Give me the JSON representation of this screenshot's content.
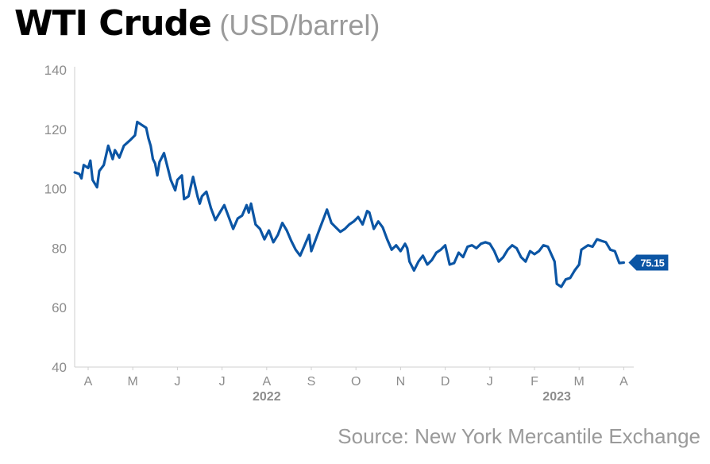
{
  "title": "WTI Crude",
  "subtitle": "(USD/barrel)",
  "source": "Source: New York Mercantile Exchange",
  "colors": {
    "line": "#0b55a4",
    "axis": "#cfcfcf",
    "tick_text": "#8c8c8c"
  },
  "chart_data": {
    "type": "line",
    "title": "WTI Crude",
    "subtitle": "(USD/barrel)",
    "xlabel": "",
    "ylabel": "",
    "ylim": [
      40,
      140
    ],
    "yticks": [
      40,
      60,
      80,
      100,
      120,
      140
    ],
    "grid": false,
    "x_tick_labels": [
      "A",
      "M",
      "J",
      "J",
      "A",
      "S",
      "O",
      "N",
      "D",
      "J",
      "F",
      "M",
      "A"
    ],
    "year_labels": [
      {
        "label": "2022",
        "month_index": 4
      },
      {
        "label": "2023",
        "month_index": 10.5
      }
    ],
    "last_value_label": "75.15",
    "series": [
      {
        "values": [
          [
            -0.3,
            105.5
          ],
          [
            -0.2,
            105
          ],
          [
            -0.15,
            103.5
          ],
          [
            -0.1,
            108
          ],
          [
            0,
            107
          ],
          [
            0.05,
            109.5
          ],
          [
            0.1,
            103
          ],
          [
            0.2,
            100.5
          ],
          [
            0.25,
            106
          ],
          [
            0.35,
            108
          ],
          [
            0.45,
            114.5
          ],
          [
            0.55,
            110
          ],
          [
            0.6,
            113
          ],
          [
            0.7,
            110.5
          ],
          [
            0.8,
            114.5
          ],
          [
            0.95,
            116.5
          ],
          [
            1.05,
            118
          ],
          [
            1.1,
            122.5
          ],
          [
            1.2,
            121.5
          ],
          [
            1.3,
            120.5
          ],
          [
            1.35,
            117
          ],
          [
            1.4,
            114.5
          ],
          [
            1.45,
            110
          ],
          [
            1.5,
            108.5
          ],
          [
            1.55,
            104.5
          ],
          [
            1.6,
            109
          ],
          [
            1.7,
            112
          ],
          [
            1.8,
            106
          ],
          [
            1.85,
            103
          ],
          [
            1.95,
            99.5
          ],
          [
            2.0,
            103
          ],
          [
            2.1,
            104.5
          ],
          [
            2.15,
            96.5
          ],
          [
            2.25,
            97.5
          ],
          [
            2.35,
            104
          ],
          [
            2.45,
            97.5
          ],
          [
            2.5,
            95
          ],
          [
            2.55,
            97.5
          ],
          [
            2.65,
            99
          ],
          [
            2.75,
            93.5
          ],
          [
            2.85,
            89.5
          ],
          [
            2.95,
            92
          ],
          [
            3.05,
            94.5
          ],
          [
            3.15,
            90.5
          ],
          [
            3.25,
            86.5
          ],
          [
            3.35,
            90
          ],
          [
            3.45,
            91
          ],
          [
            3.55,
            94.5
          ],
          [
            3.6,
            92
          ],
          [
            3.65,
            95
          ],
          [
            3.75,
            88
          ],
          [
            3.85,
            86.5
          ],
          [
            3.95,
            83
          ],
          [
            4.05,
            86
          ],
          [
            4.15,
            82
          ],
          [
            4.25,
            84.5
          ],
          [
            4.35,
            88.5
          ],
          [
            4.45,
            86
          ],
          [
            4.55,
            82.5
          ],
          [
            4.65,
            79.5
          ],
          [
            4.75,
            77.5
          ],
          [
            4.85,
            81
          ],
          [
            4.95,
            84.5
          ],
          [
            5.0,
            79
          ],
          [
            5.1,
            83
          ],
          [
            5.2,
            87
          ],
          [
            5.3,
            91
          ],
          [
            5.35,
            93
          ],
          [
            5.45,
            88.5
          ],
          [
            5.55,
            87
          ],
          [
            5.65,
            85.5
          ],
          [
            5.75,
            86.5
          ],
          [
            5.85,
            88
          ],
          [
            5.95,
            89
          ],
          [
            6.05,
            90.5
          ],
          [
            6.15,
            88
          ],
          [
            6.25,
            92.5
          ],
          [
            6.3,
            92
          ],
          [
            6.4,
            86.5
          ],
          [
            6.5,
            89
          ],
          [
            6.6,
            87
          ],
          [
            6.7,
            83
          ],
          [
            6.8,
            79.5
          ],
          [
            6.9,
            81
          ],
          [
            7.0,
            79
          ],
          [
            7.1,
            81.5
          ],
          [
            7.15,
            80
          ],
          [
            7.2,
            75.5
          ],
          [
            7.3,
            72.5
          ],
          [
            7.4,
            75.5
          ],
          [
            7.5,
            77.5
          ],
          [
            7.6,
            74.5
          ],
          [
            7.7,
            76
          ],
          [
            7.8,
            78.5
          ],
          [
            7.9,
            79.5
          ],
          [
            8.0,
            81
          ],
          [
            8.1,
            74.5
          ],
          [
            8.2,
            75
          ],
          [
            8.3,
            78.5
          ],
          [
            8.4,
            77
          ],
          [
            8.5,
            80.5
          ],
          [
            8.6,
            81
          ],
          [
            8.7,
            80
          ],
          [
            8.8,
            81.5
          ],
          [
            8.9,
            82
          ],
          [
            9.0,
            81.5
          ],
          [
            9.1,
            79
          ],
          [
            9.2,
            75.5
          ],
          [
            9.3,
            77
          ],
          [
            9.4,
            79.5
          ],
          [
            9.5,
            81
          ],
          [
            9.6,
            80
          ],
          [
            9.7,
            77
          ],
          [
            9.8,
            75.5
          ],
          [
            9.9,
            79
          ],
          [
            10.0,
            78
          ],
          [
            10.1,
            79
          ],
          [
            10.2,
            81
          ],
          [
            10.3,
            80.5
          ],
          [
            10.45,
            75.5
          ],
          [
            10.5,
            68
          ],
          [
            10.6,
            67
          ],
          [
            10.7,
            69.5
          ],
          [
            10.8,
            70
          ],
          [
            10.9,
            72.5
          ],
          [
            11.0,
            74.5
          ],
          [
            11.05,
            79.5
          ],
          [
            11.2,
            81
          ],
          [
            11.3,
            80.5
          ],
          [
            11.4,
            83
          ],
          [
            11.5,
            82.5
          ],
          [
            11.6,
            82
          ],
          [
            11.7,
            79.5
          ],
          [
            11.8,
            79
          ],
          [
            11.9,
            75
          ],
          [
            12.0,
            75.15
          ]
        ]
      }
    ]
  }
}
